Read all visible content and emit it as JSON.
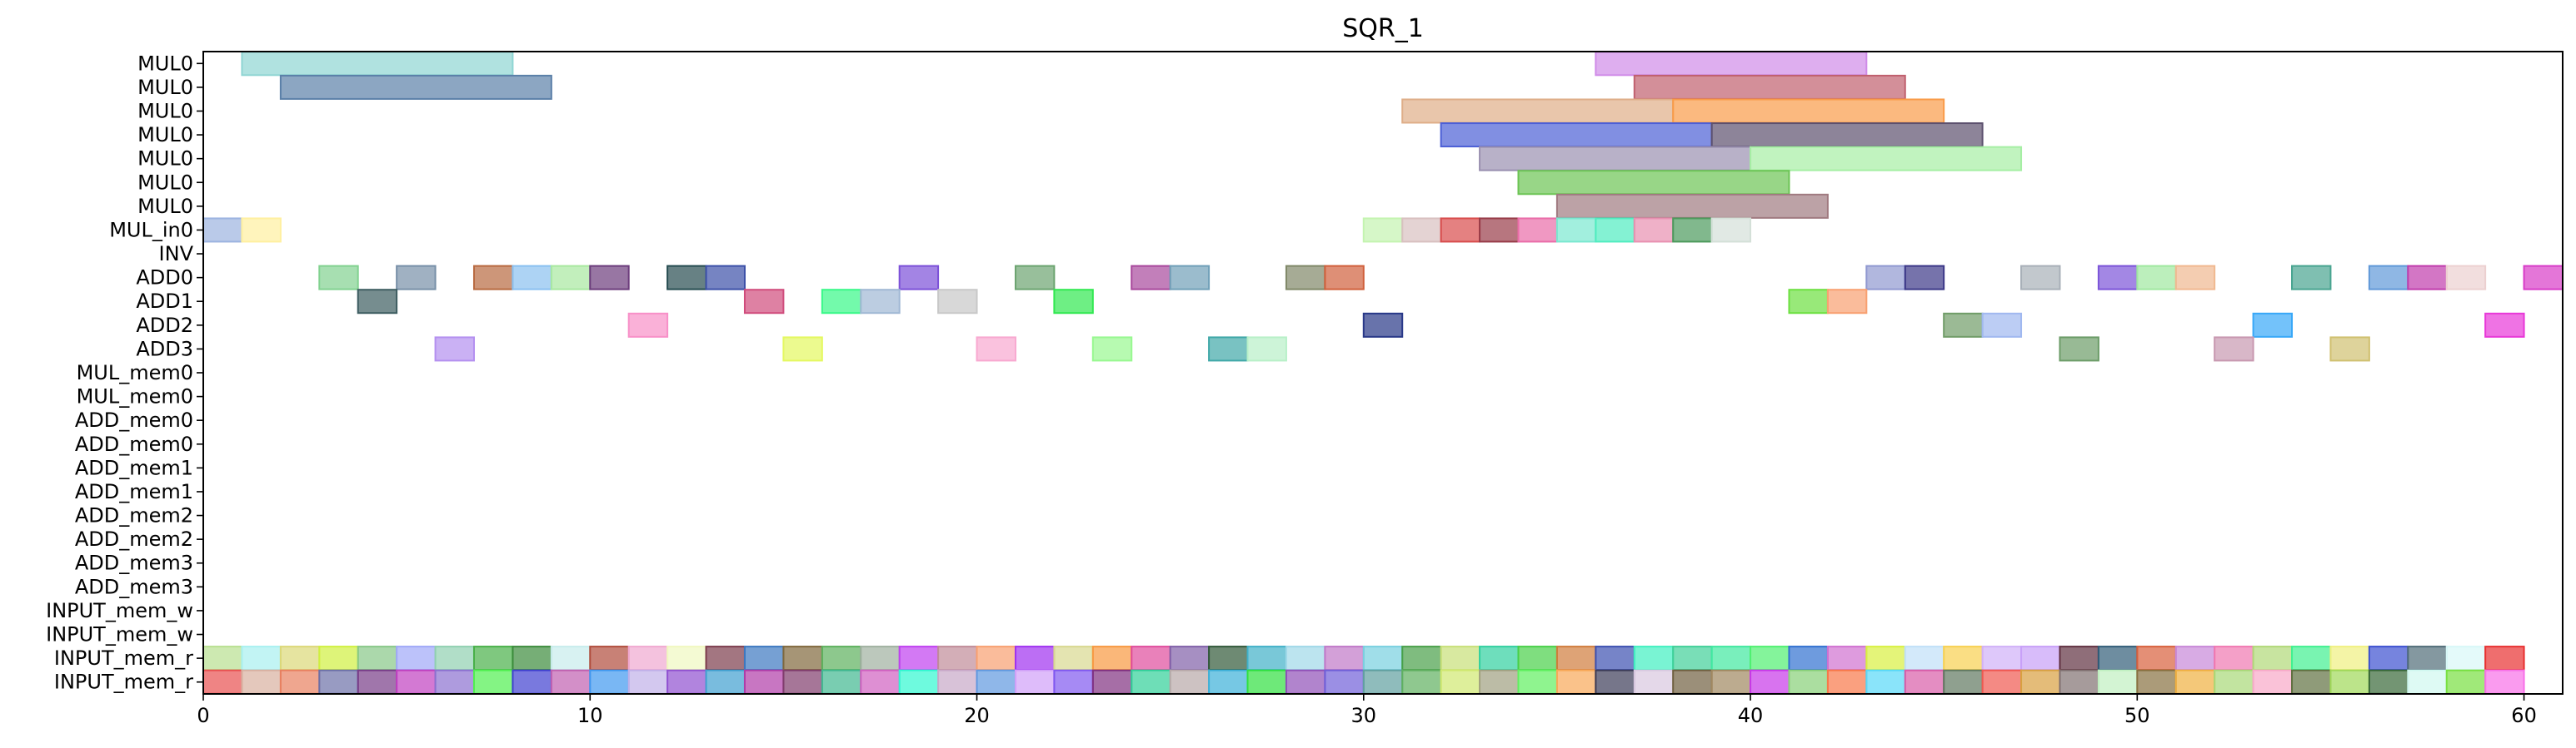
{
  "chart_data": {
    "type": "gantt",
    "title": "SQR_1",
    "xlabel": "",
    "ylabel": "",
    "xlim": [
      0,
      61
    ],
    "xticks": [
      0,
      10,
      20,
      30,
      40,
      50,
      60
    ],
    "grid": false,
    "rows": [
      "MUL0",
      "MUL0",
      "MUL0",
      "MUL0",
      "MUL0",
      "MUL0",
      "MUL0",
      "MUL_in0",
      "INV",
      "ADD0",
      "ADD1",
      "ADD2",
      "ADD3",
      "MUL_mem0",
      "MUL_mem0",
      "ADD_mem0",
      "ADD_mem0",
      "ADD_mem1",
      "ADD_mem1",
      "ADD_mem2",
      "ADD_mem2",
      "ADD_mem3",
      "ADD_mem3",
      "INPUT_mem_w",
      "INPUT_mem_w",
      "INPUT_mem_r",
      "INPUT_mem_r"
    ],
    "series": [
      {
        "row": 0,
        "intervals": [
          [
            1,
            8,
            "#8fd5d3"
          ],
          [
            36,
            43,
            "#d08be8"
          ]
        ]
      },
      {
        "row": 1,
        "intervals": [
          [
            2,
            9,
            "#5b80a8"
          ],
          [
            37,
            44,
            "#c0606e"
          ]
        ]
      },
      {
        "row": 2,
        "intervals": [
          [
            31,
            38,
            "#dfae88"
          ],
          [
            38,
            45,
            "#f99b48"
          ]
        ]
      },
      {
        "row": 3,
        "intervals": [
          [
            32,
            39,
            "#4c5fd6"
          ],
          [
            39,
            46,
            "#5c506e"
          ]
        ]
      },
      {
        "row": 4,
        "intervals": [
          [
            33,
            40,
            "#9a90b0"
          ],
          [
            40,
            47,
            "#a6eea4"
          ]
        ]
      },
      {
        "row": 5,
        "intervals": [
          [
            34,
            41,
            "#6cc454"
          ]
        ]
      },
      {
        "row": 6,
        "intervals": [
          [
            35,
            42,
            "#a07a80"
          ]
        ]
      },
      {
        "row": 7,
        "intervals": [
          [
            0,
            1,
            "#9cb4e0"
          ],
          [
            1,
            2,
            "#fff0a0"
          ],
          [
            30,
            31,
            "#c4f4b0"
          ],
          [
            31,
            32,
            "#d8c0c0"
          ],
          [
            32,
            33,
            "#d84c4c"
          ],
          [
            33,
            34,
            "#983c48"
          ],
          [
            34,
            35,
            "#ea6ca8"
          ],
          [
            35,
            36,
            "#7ae8d0"
          ],
          [
            36,
            37,
            "#50ecc0"
          ],
          [
            37,
            38,
            "#e890b0"
          ],
          [
            38,
            39,
            "#4c9a5c"
          ],
          [
            39,
            40,
            "#d4e0d8"
          ]
        ]
      },
      {
        "row": 9,
        "intervals": [
          [
            3,
            4,
            "#82d290"
          ],
          [
            5,
            6,
            "#7890a8"
          ],
          [
            7,
            8,
            "#b86a40"
          ],
          [
            8,
            9,
            "#8ac0f0"
          ],
          [
            9,
            10,
            "#a8e8a0"
          ],
          [
            10,
            11,
            "#6c3c7c"
          ],
          [
            12,
            13,
            "#264c50"
          ],
          [
            13,
            14,
            "#3c50a8"
          ],
          [
            18,
            19,
            "#7c50d8"
          ],
          [
            21,
            22,
            "#6ca470"
          ],
          [
            24,
            25,
            "#a8489c"
          ],
          [
            25,
            26,
            "#70a0b8"
          ],
          [
            28,
            29,
            "#808868"
          ],
          [
            29,
            30,
            "#d0603c"
          ],
          [
            43,
            44,
            "#9098d0"
          ],
          [
            44,
            45,
            "#3c3888"
          ],
          [
            47,
            48,
            "#a8b0b8"
          ],
          [
            49,
            50,
            "#7c54d8"
          ],
          [
            50,
            51,
            "#a0e8a0"
          ],
          [
            51,
            52,
            "#f0b890"
          ],
          [
            54,
            55,
            "#48a490"
          ],
          [
            56,
            57,
            "#6098d8"
          ],
          [
            57,
            58,
            "#c03cac"
          ],
          [
            58,
            59,
            "#ecd0d0"
          ],
          [
            60,
            61,
            "#d83cc8"
          ]
        ]
      },
      {
        "row": 10,
        "intervals": [
          [
            4,
            5,
            "#3c5c60"
          ],
          [
            14,
            15,
            "#d04c7c"
          ],
          [
            16,
            17,
            "#38f888"
          ],
          [
            17,
            18,
            "#a0b8d4"
          ],
          [
            19,
            20,
            "#c8c8c8"
          ],
          [
            22,
            23,
            "#30e850"
          ],
          [
            41,
            42,
            "#6ce040"
          ],
          [
            42,
            43,
            "#f8a070"
          ]
        ]
      },
      {
        "row": 11,
        "intervals": [
          [
            11,
            12,
            "#f890c8"
          ],
          [
            30,
            31,
            "#283888"
          ],
          [
            45,
            46,
            "#709c68"
          ],
          [
            46,
            47,
            "#a0b8f0"
          ],
          [
            53,
            54,
            "#38a8f8"
          ],
          [
            59,
            60,
            "#e838d8"
          ]
        ]
      },
      {
        "row": 12,
        "intervals": [
          [
            6,
            7,
            "#b490f0"
          ],
          [
            15,
            16,
            "#e4f860"
          ],
          [
            20,
            21,
            "#f8a8d0"
          ],
          [
            23,
            24,
            "#98f890"
          ],
          [
            26,
            27,
            "#40a8a8"
          ],
          [
            27,
            28,
            "#b8f0c8"
          ],
          [
            48,
            49,
            "#6c9c68"
          ],
          [
            52,
            53,
            "#c898b0"
          ],
          [
            55,
            56,
            "#d0c070"
          ]
        ]
      },
      {
        "row": 25,
        "intervals": [
          [
            0,
            1,
            "#b8e090"
          ],
          [
            1,
            2,
            "#a8f0f0"
          ],
          [
            2,
            3,
            "#dcd878"
          ],
          [
            3,
            4,
            "#d0f040"
          ],
          [
            4,
            5,
            "#88c888"
          ],
          [
            5,
            6,
            "#a0a8f8"
          ],
          [
            6,
            7,
            "#90d0b0"
          ],
          [
            7,
            8,
            "#48b048"
          ],
          [
            8,
            9,
            "#3c8c3c"
          ],
          [
            9,
            10,
            "#c8ecec"
          ],
          [
            10,
            11,
            "#b04c3c"
          ],
          [
            11,
            12,
            "#f0a8d0"
          ],
          [
            12,
            13,
            "#f0f8c0"
          ],
          [
            13,
            14,
            "#7c3c4c"
          ],
          [
            14,
            15,
            "#3c78c0"
          ],
          [
            15,
            16,
            "#80683c"
          ],
          [
            16,
            17,
            "#5cb05c"
          ],
          [
            17,
            18,
            "#a0b0a0"
          ],
          [
            18,
            19,
            "#c040f0"
          ],
          [
            19,
            20,
            "#c08c98"
          ],
          [
            20,
            21,
            "#f8a070"
          ],
          [
            21,
            22,
            "#a030f0"
          ],
          [
            22,
            23,
            "#d8d890"
          ],
          [
            23,
            24,
            "#f89840"
          ],
          [
            24,
            25,
            "#e04c9c"
          ],
          [
            25,
            26,
            "#8060a8"
          ],
          [
            26,
            27,
            "#305838"
          ],
          [
            27,
            28,
            "#40b0c8"
          ],
          [
            28,
            29,
            "#a0d8e8"
          ],
          [
            29,
            30,
            "#c078c8"
          ],
          [
            30,
            31,
            "#78d0e0"
          ],
          [
            31,
            32,
            "#48a048"
          ],
          [
            32,
            33,
            "#c8e078"
          ],
          [
            33,
            34,
            "#30d0a0"
          ],
          [
            34,
            35,
            "#48d048"
          ],
          [
            35,
            36,
            "#d07c3c"
          ],
          [
            36,
            37,
            "#3c50b0"
          ],
          [
            37,
            38,
            "#40f0c0"
          ],
          [
            38,
            39,
            "#40d098"
          ],
          [
            39,
            40,
            "#40e8a0"
          ],
          [
            40,
            41,
            "#50f070"
          ],
          [
            41,
            42,
            "#3070d0"
          ],
          [
            42,
            43,
            "#d070d0"
          ],
          [
            43,
            44,
            "#d8f040"
          ],
          [
            44,
            45,
            "#c0e0f8"
          ],
          [
            45,
            46,
            "#f8d050"
          ],
          [
            46,
            47,
            "#d0b0f8"
          ],
          [
            47,
            48,
            "#c8a0f8"
          ],
          [
            48,
            49,
            "#603040"
          ],
          [
            49,
            50,
            "#305c78"
          ],
          [
            50,
            51,
            "#d8603c"
          ],
          [
            51,
            52,
            "#c888d8"
          ],
          [
            52,
            53,
            "#f078b0"
          ],
          [
            53,
            54,
            "#b0d878"
          ],
          [
            54,
            55,
            "#40f090"
          ],
          [
            55,
            56,
            "#f0f080"
          ],
          [
            56,
            57,
            "#3c50d0"
          ],
          [
            57,
            58,
            "#506c78"
          ],
          [
            58,
            59,
            "#d8f8f8"
          ],
          [
            59,
            60,
            "#e83030"
          ]
        ]
      },
      {
        "row": 26,
        "intervals": [
          [
            0,
            1,
            "#e85050"
          ],
          [
            1,
            2,
            "#d8b0a0"
          ],
          [
            2,
            3,
            "#e88060"
          ],
          [
            3,
            4,
            "#6c70a8"
          ],
          [
            4,
            5,
            "#783c88"
          ],
          [
            5,
            6,
            "#c040c0"
          ],
          [
            6,
            7,
            "#8c70d0"
          ],
          [
            7,
            8,
            "#50f050"
          ],
          [
            8,
            9,
            "#4040d0"
          ],
          [
            9,
            10,
            "#c060b0"
          ],
          [
            10,
            11,
            "#4098f0"
          ],
          [
            11,
            12,
            "#c0b0e8"
          ],
          [
            12,
            13,
            "#9050d0"
          ],
          [
            13,
            14,
            "#40a0d0"
          ],
          [
            14,
            15,
            "#b03ca8"
          ],
          [
            15,
            16,
            "#803c6c"
          ],
          [
            16,
            17,
            "#40b890"
          ],
          [
            17,
            18,
            "#d060c0"
          ],
          [
            18,
            19,
            "#30f8d0"
          ],
          [
            19,
            20,
            "#c8a8c8"
          ],
          [
            20,
            21,
            "#6098e0"
          ],
          [
            21,
            22,
            "#d0a0f8"
          ],
          [
            22,
            23,
            "#8058f0"
          ],
          [
            23,
            24,
            "#803080"
          ],
          [
            24,
            25,
            "#30d098"
          ],
          [
            25,
            26,
            "#b8a8a8"
          ],
          [
            26,
            27,
            "#3cb0d8"
          ],
          [
            27,
            28,
            "#30e040"
          ],
          [
            28,
            29,
            "#9050b8"
          ],
          [
            29,
            30,
            "#7060d8"
          ],
          [
            30,
            31,
            "#60a0a0"
          ],
          [
            31,
            32,
            "#60b060"
          ],
          [
            32,
            33,
            "#d0e870"
          ],
          [
            33,
            34,
            "#a0a080"
          ],
          [
            34,
            35,
            "#60f060"
          ],
          [
            35,
            36,
            "#f8a858"
          ],
          [
            36,
            37,
            "#3c3c58"
          ],
          [
            37,
            38,
            "#d8c8e0"
          ],
          [
            38,
            39,
            "#706040"
          ],
          [
            39,
            40,
            "#a08860"
          ],
          [
            40,
            41,
            "#c838e8"
          ],
          [
            41,
            42,
            "#88d078"
          ],
          [
            42,
            43,
            "#f87848"
          ],
          [
            43,
            44,
            "#58d8f8"
          ],
          [
            44,
            45,
            "#d85ca8"
          ],
          [
            45,
            46,
            "#607860"
          ],
          [
            46,
            47,
            "#f05850"
          ],
          [
            47,
            48,
            "#d8a040"
          ],
          [
            48,
            49,
            "#807070"
          ],
          [
            49,
            50,
            "#c0f0c0"
          ],
          [
            50,
            51,
            "#887040"
          ],
          [
            51,
            52,
            "#f0b040"
          ],
          [
            52,
            53,
            "#a8d878"
          ],
          [
            53,
            54,
            "#f8a8c8"
          ],
          [
            54,
            55,
            "#607040"
          ],
          [
            55,
            56,
            "#a0d858"
          ],
          [
            56,
            57,
            "#386838"
          ],
          [
            57,
            58,
            "#d0f8f0"
          ],
          [
            58,
            59,
            "#78e040"
          ],
          [
            59,
            60,
            "#f870e8"
          ]
        ]
      }
    ]
  }
}
